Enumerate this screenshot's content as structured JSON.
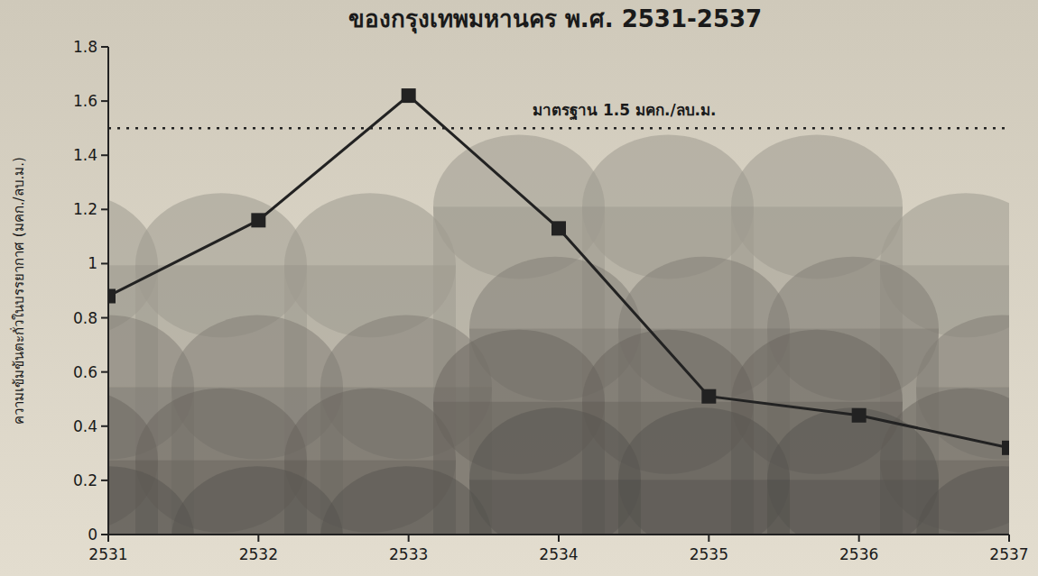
{
  "chart_data": {
    "type": "line",
    "title": "ของกรุงเทพมหานคร พ.ศ. 2531-2537",
    "y_label": "ความเข้มข้นตะกั่วในบรรยากาศ (มคก./ลบ.ม.)",
    "categories": [
      "2531",
      "2532",
      "2533",
      "2534",
      "2535",
      "2536",
      "2537"
    ],
    "values": [
      0.88,
      1.16,
      1.62,
      1.13,
      0.51,
      0.44,
      0.32
    ],
    "color": "#222222",
    "marker": "square",
    "ylim": [
      0,
      1.8
    ],
    "yticks": [
      0,
      0.2,
      0.4,
      0.6,
      0.8,
      1,
      1.2,
      1.4,
      1.6,
      1.8
    ],
    "reference_line": {
      "value": 1.5,
      "label": "มาตรฐาน 1.5 มคก./ลบ.ม."
    }
  }
}
